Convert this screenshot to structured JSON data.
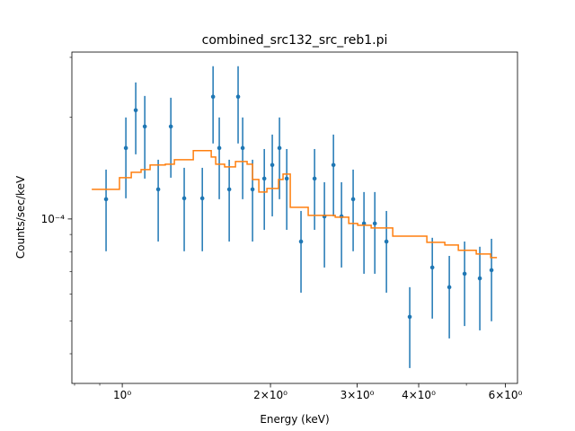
{
  "chart_data": {
    "type": "errorbar",
    "title": "combined_src132_src_reb1.pi",
    "xlabel": "Energy (keV)",
    "ylabel": "Counts/sec/keV",
    "xscale": "log",
    "yscale": "log",
    "xlim": [
      0.79,
      6.35
    ],
    "ylim": [
      3.27e-05,
      0.000311
    ],
    "xticks": [
      {
        "value": 1,
        "label": "10⁰"
      },
      {
        "value": 2,
        "label": "2×10⁰"
      },
      {
        "value": 3,
        "label": "3×10⁰"
      },
      {
        "value": 4,
        "label": "4×10⁰"
      },
      {
        "value": 6,
        "label": "6×10⁰"
      }
    ],
    "xminor": [
      0.8,
      0.9,
      5
    ],
    "yticks": [
      {
        "value": 0.0001,
        "label": "10⁻⁴"
      }
    ],
    "yminor": [
      4e-05,
      5e-05,
      6e-05,
      7e-05,
      8e-05,
      9e-05,
      0.0002,
      0.0003
    ],
    "data": {
      "color": "#1f77b4",
      "x": [
        0.927,
        1.017,
        1.065,
        1.111,
        1.183,
        1.255,
        1.336,
        1.454,
        1.529,
        1.574,
        1.649,
        1.719,
        1.756,
        1.839,
        1.943,
        2.017,
        2.086,
        2.158,
        2.307,
        2.458,
        2.574,
        2.685,
        2.788,
        2.944,
        3.097,
        3.258,
        3.44,
        3.836,
        4.263,
        4.616,
        4.958,
        5.324,
        5.623
      ],
      "values": [
        0.0001144,
        0.000162,
        0.0002094,
        0.0001875,
        0.0001223,
        0.0001875,
        0.0001151,
        0.0001151,
        0.0002296,
        0.000162,
        0.0001223,
        0.0002296,
        0.000162,
        0.0001223,
        0.0001316,
        0.0001443,
        0.000162,
        0.0001316,
        8.58e-05,
        0.0001316,
        0.0001018,
        0.0001443,
        0.0001018,
        0.0001144,
        9.7e-05,
        9.7e-05,
        8.58e-05,
        5.14e-05,
        7.19e-05,
        6.29e-05,
        6.89e-05,
        6.68e-05,
        7.06e-05
      ],
      "y_high": [
        0.0001399,
        0.0001994,
        0.000253,
        0.0002308,
        0.0001496,
        0.000228,
        0.0001416,
        0.0001416,
        0.0002825,
        0.0001994,
        0.0001496,
        0.0002825,
        0.0001994,
        0.0001496,
        0.0001609,
        0.0001775,
        0.0001994,
        0.0001609,
        0.0001056,
        0.0001609,
        0.0001284,
        0.0001775,
        0.0001284,
        0.0001399,
        0.0001201,
        0.0001201,
        0.0001056,
        6.29e-05,
        8.8e-05,
        7.78e-05,
        8.58e-05,
        8.28e-05,
        8.74e-05
      ],
      "y_low": [
        8.03e-05,
        0.0001151,
        0.0001552,
        0.0001316,
        8.58e-05,
        0.0001324,
        8.03e-05,
        8.03e-05,
        0.0001671,
        0.0001144,
        8.58e-05,
        0.0001671,
        0.0001144,
        8.58e-05,
        9.29e-05,
        0.0001018,
        0.0001144,
        9.29e-05,
        6.06e-05,
        9.29e-05,
        7.19e-05,
        0.0001018,
        7.19e-05,
        8.03e-05,
        6.89e-05,
        6.89e-05,
        6.06e-05,
        3.63e-05,
        5.08e-05,
        4.44e-05,
        4.83e-05,
        4.69e-05,
        4.99e-05
      ]
    },
    "model": {
      "color": "#ff7f0e",
      "bins": [
        0.867,
        0.987,
        1.043,
        1.092,
        1.139,
        1.223,
        1.276,
        1.394,
        1.516,
        1.548,
        1.614,
        1.698,
        1.793,
        1.839,
        1.894,
        1.967,
        2.077,
        2.121,
        2.194,
        2.386,
        2.707,
        2.884,
        3.007,
        3.203,
        3.543,
        4.156,
        4.52,
        4.815,
        5.236,
        5.601,
        5.768
      ],
      "values": [
        0.0001223,
        0.0001324,
        0.0001374,
        0.0001399,
        0.0001443,
        0.0001451,
        0.0001496,
        0.0001591,
        0.0001524,
        0.0001451,
        0.0001425,
        0.0001478,
        0.0001451,
        0.0001308,
        0.0001201,
        0.0001231,
        0.0001308,
        0.0001357,
        0.0001083,
        0.0001025,
        0.0001012,
        9.7e-05,
        9.58e-05,
        9.41e-05,
        8.9e-05,
        8.53e-05,
        8.38e-05,
        8.08e-05,
        7.88e-05,
        7.69e-05
      ]
    }
  }
}
